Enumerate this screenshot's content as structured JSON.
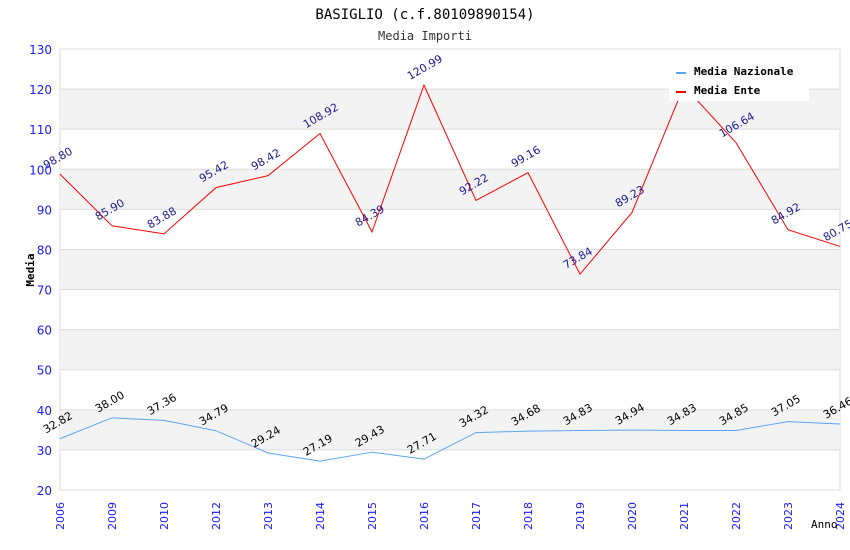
{
  "chart_data": {
    "type": "line",
    "title": "BASIGLIO (c.f.80109890154)",
    "subtitle": "Media Importi",
    "xlabel": "Anno",
    "ylabel": "Media",
    "ylim": [
      20,
      130
    ],
    "yticks": [
      20,
      30,
      40,
      50,
      60,
      70,
      80,
      90,
      100,
      110,
      120,
      130
    ],
    "grid": true,
    "legend_position": "top-right",
    "categories": [
      "2006",
      "2009",
      "2010",
      "2012",
      "2013",
      "2014",
      "2015",
      "2016",
      "2017",
      "2018",
      "2019",
      "2020",
      "2021",
      "2022",
      "2023",
      "2024"
    ],
    "series": [
      {
        "name": "Media Nazionale",
        "color": "#5aa5f0",
        "label_color": "#000000",
        "values": [
          32.82,
          38.0,
          37.36,
          34.79,
          29.24,
          27.19,
          29.43,
          27.71,
          34.32,
          34.68,
          34.83,
          34.94,
          34.83,
          34.85,
          37.05,
          36.46
        ],
        "labels": [
          "32.82",
          "38.00",
          "37.36",
          "34.79",
          "29.24",
          "27.19",
          "29.43",
          "27.71",
          "34.32",
          "34.68",
          "34.83",
          "34.94",
          "34.83",
          "34.85",
          "37.05",
          "36.46"
        ]
      },
      {
        "name": "Media Ente",
        "color": "#ff0000",
        "label_color": "#1a1a8c",
        "values": [
          98.8,
          85.9,
          83.88,
          95.42,
          98.42,
          108.92,
          84.39,
          120.99,
          92.22,
          99.16,
          73.84,
          89.23,
          120.8,
          106.64,
          84.92,
          80.75
        ],
        "labels": [
          "98.80",
          "85.90",
          "83.88",
          "95.42",
          "98.42",
          "108.92",
          "84.39",
          "120.99",
          "92.22",
          "99.16",
          "73.84",
          "89.23",
          "",
          "106.64",
          "84.92",
          "80.75"
        ]
      }
    ]
  }
}
